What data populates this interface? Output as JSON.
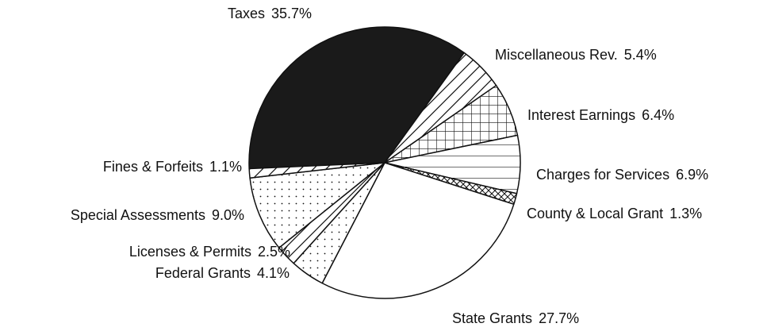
{
  "chart_data": {
    "type": "pie",
    "categories": [
      "Taxes",
      "Miscellaneous Rev.",
      "Interest Earnings",
      "Charges for Services",
      "County & Local Grant",
      "State Grants",
      "Federal Grants",
      "Licenses & Permits",
      "Special Assessments",
      "Fines & Forfeits"
    ],
    "values": [
      35.7,
      5.4,
      6.4,
      6.9,
      1.3,
      27.7,
      4.1,
      2.5,
      9.0,
      1.1
    ],
    "value_labels": [
      "35.7%",
      "5.4%",
      "6.4%",
      "6.9%",
      "1.3%",
      "27.7%",
      "4.1%",
      "2.5%",
      "9.0%",
      "1.1%"
    ],
    "patterns": [
      "solid",
      "diagonal",
      "grid",
      "horizontal",
      "crosshatch",
      "none",
      "dots",
      "diagonal",
      "dots",
      "diagonal"
    ]
  }
}
